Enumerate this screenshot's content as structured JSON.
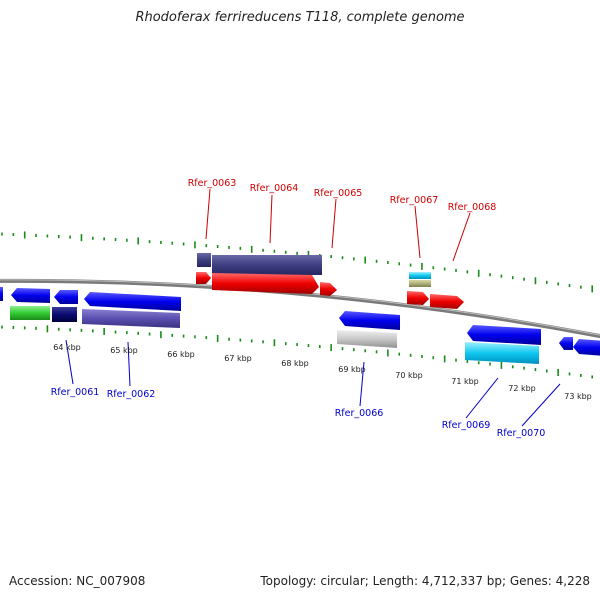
{
  "title": "Rhodoferax ferrireducens T118, complete genome",
  "footer": {
    "accession": "Accession: NC_007908",
    "stats": "Topology: circular; Length: 4,712,337 bp; Genes: 4,228"
  },
  "colors": {
    "backbone": "#8c8c8c",
    "tick": "#1a8a1a",
    "top_label": "#cc0000",
    "bottom_label": "#0000cc"
  },
  "scale_labels": [
    "64 kbp",
    "65 kbp",
    "66 kbp",
    "67 kbp",
    "68 kbp",
    "69 kbp",
    "70 kbp",
    "71 kbp",
    "72 kbp",
    "73 kbp"
  ],
  "top_gene_labels": [
    "Rfer_0063",
    "Rfer_0064",
    "Rfer_0065",
    "Rfer_0067",
    "Rfer_0068"
  ],
  "bottom_gene_labels": [
    "Rfer_0061",
    "Rfer_0062",
    "Rfer_0066",
    "Rfer_0069",
    "Rfer_0070"
  ]
}
